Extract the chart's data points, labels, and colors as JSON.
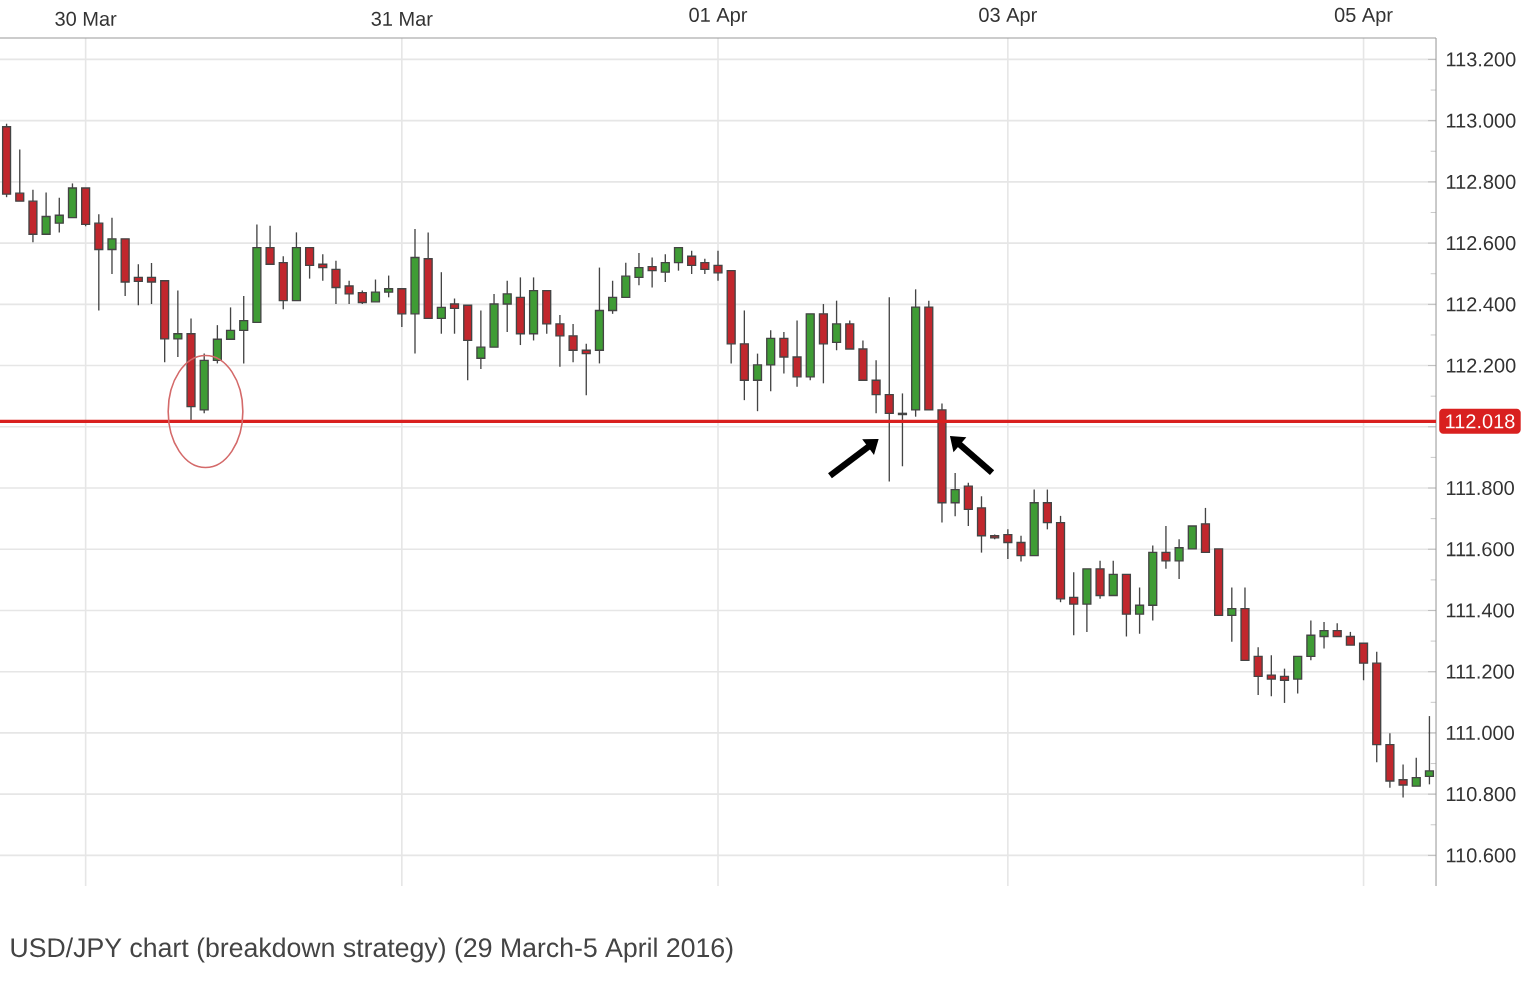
{
  "chart_data": {
    "type": "candlestick",
    "categories": [
      null,
      null,
      null,
      null,
      null,
      null,
      "30 Mar",
      null,
      null,
      null,
      null,
      null,
      null,
      null,
      null,
      null,
      null,
      null,
      null,
      null,
      null,
      null,
      null,
      null,
      null,
      null,
      null,
      null,
      null,
      null,
      "31 Mar",
      null,
      null,
      null,
      null,
      null,
      null,
      null,
      null,
      null,
      null,
      null,
      null,
      null,
      null,
      null,
      null,
      null,
      null,
      null,
      null,
      null,
      null,
      null,
      "01 Apr",
      null,
      null,
      null,
      null,
      null,
      null,
      null,
      null,
      null,
      null,
      null,
      null,
      null,
      null,
      null,
      null,
      null,
      null,
      null,
      null,
      null,
      "03 Apr",
      null,
      null,
      null,
      null,
      null,
      null,
      null,
      null,
      null,
      null,
      null,
      null,
      null,
      null,
      null,
      null,
      null,
      null,
      null,
      null,
      null,
      null,
      null,
      null,
      null,
      null,
      "05 Apr",
      null,
      null,
      null,
      null,
      null
    ],
    "ohlc": [
      [
        112.98,
        112.99,
        112.75,
        112.76
      ],
      [
        112.763,
        112.906,
        112.737,
        112.737
      ],
      [
        112.737,
        112.774,
        112.603,
        112.629
      ],
      [
        112.629,
        112.765,
        112.629,
        112.687
      ],
      [
        112.665,
        112.748,
        112.635,
        112.691
      ],
      [
        112.683,
        112.795,
        112.683,
        112.78
      ],
      [
        112.78,
        112.78,
        112.655,
        112.661
      ],
      [
        112.665,
        112.694,
        112.38,
        112.579
      ],
      [
        112.579,
        112.683,
        112.499,
        112.614
      ],
      [
        112.614,
        112.614,
        112.427,
        112.473
      ],
      [
        112.488,
        112.531,
        112.397,
        112.475
      ],
      [
        112.488,
        112.535,
        112.401,
        112.473
      ],
      [
        112.477,
        112.477,
        112.211,
        112.287
      ],
      [
        112.287,
        112.445,
        112.228,
        112.304
      ],
      [
        112.304,
        112.354,
        112.018,
        112.066
      ],
      [
        112.055,
        112.239,
        112.044,
        112.217
      ],
      [
        112.217,
        112.332,
        112.207,
        112.286
      ],
      [
        112.286,
        112.39,
        112.286,
        112.315
      ],
      [
        112.315,
        112.427,
        112.207,
        112.347
      ],
      [
        112.341,
        112.661,
        112.341,
        112.585
      ],
      [
        112.585,
        112.657,
        112.531,
        112.531
      ],
      [
        112.536,
        112.557,
        112.384,
        112.412
      ],
      [
        112.412,
        112.635,
        112.412,
        112.585
      ],
      [
        112.585,
        112.585,
        112.484,
        112.527
      ],
      [
        112.531,
        112.564,
        112.477,
        112.52
      ],
      [
        112.514,
        112.542,
        112.401,
        112.455
      ],
      [
        112.46,
        112.477,
        112.401,
        112.434
      ],
      [
        112.438,
        112.445,
        112.401,
        112.406
      ],
      [
        112.408,
        112.481,
        112.408,
        112.44
      ],
      [
        112.44,
        112.494,
        112.423,
        112.451
      ],
      [
        112.451,
        112.451,
        112.326,
        112.369
      ],
      [
        112.369,
        112.646,
        112.239,
        112.553
      ],
      [
        112.549,
        112.635,
        112.354,
        112.354
      ],
      [
        112.354,
        112.505,
        112.304,
        112.39
      ],
      [
        112.401,
        112.419,
        112.304,
        112.387
      ],
      [
        112.397,
        112.397,
        112.152,
        112.282
      ],
      [
        112.224,
        112.38,
        112.189,
        112.26
      ],
      [
        112.26,
        112.434,
        112.26,
        112.401
      ],
      [
        112.401,
        112.477,
        112.31,
        112.434
      ],
      [
        112.423,
        112.488,
        112.267,
        112.304
      ],
      [
        112.304,
        112.488,
        112.282,
        112.445
      ],
      [
        112.445,
        112.445,
        112.304,
        112.336
      ],
      [
        112.336,
        112.365,
        112.196,
        112.297
      ],
      [
        112.297,
        112.336,
        112.211,
        112.25
      ],
      [
        112.25,
        112.271,
        112.103,
        112.239
      ],
      [
        112.25,
        112.52,
        112.207,
        112.38
      ],
      [
        112.38,
        112.477,
        112.369,
        112.423
      ],
      [
        112.423,
        112.536,
        112.423,
        112.492
      ],
      [
        112.488,
        112.568,
        112.462,
        112.52
      ],
      [
        112.523,
        112.553,
        112.455,
        112.51
      ],
      [
        112.505,
        112.564,
        112.473,
        112.536
      ],
      [
        112.536,
        112.585,
        112.51,
        112.585
      ],
      [
        112.557,
        112.575,
        112.499,
        112.527
      ],
      [
        112.536,
        112.549,
        112.499,
        112.514
      ],
      [
        112.527,
        112.575,
        112.477,
        112.503
      ],
      [
        112.51,
        112.51,
        112.207,
        112.271
      ],
      [
        112.271,
        112.38,
        112.087,
        112.152
      ],
      [
        112.152,
        112.239,
        112.051,
        112.202
      ],
      [
        112.202,
        112.315,
        112.116,
        112.289
      ],
      [
        112.289,
        112.31,
        112.174,
        112.228
      ],
      [
        112.228,
        112.347,
        112.131,
        112.163
      ],
      [
        112.163,
        112.369,
        112.152,
        112.369
      ],
      [
        112.369,
        112.401,
        112.142,
        112.271
      ],
      [
        112.276,
        112.412,
        112.25,
        112.336
      ],
      [
        112.336,
        112.347,
        112.254,
        112.254
      ],
      [
        112.254,
        112.282,
        112.152,
        112.152
      ],
      [
        112.152,
        112.217,
        112.044,
        112.105
      ],
      [
        112.105,
        112.423,
        111.821,
        112.044
      ],
      [
        112.044,
        112.109,
        111.871,
        112.04
      ],
      [
        112.055,
        112.449,
        112.033,
        112.391
      ],
      [
        112.391,
        112.412,
        112.055,
        112.055
      ],
      [
        112.055,
        112.076,
        111.687,
        111.752
      ],
      [
        111.752,
        111.849,
        111.708,
        111.795
      ],
      [
        111.806,
        111.817,
        111.676,
        111.73
      ],
      [
        111.735,
        111.773,
        111.589,
        111.644
      ],
      [
        111.644,
        111.648,
        111.633,
        111.637
      ],
      [
        111.648,
        111.665,
        111.568,
        111.622
      ],
      [
        111.622,
        111.644,
        111.56,
        111.579
      ],
      [
        111.579,
        111.795,
        111.579,
        111.752
      ],
      [
        111.752,
        111.795,
        111.665,
        111.687
      ],
      [
        111.687,
        111.709,
        111.427,
        111.438
      ],
      [
        111.443,
        111.525,
        111.319,
        111.421
      ],
      [
        111.421,
        111.536,
        111.33,
        111.536
      ],
      [
        111.536,
        111.562,
        111.438,
        111.449
      ],
      [
        111.449,
        111.562,
        111.449,
        111.518
      ],
      [
        111.518,
        111.518,
        111.315,
        111.388
      ],
      [
        111.388,
        111.475,
        111.324,
        111.417
      ],
      [
        111.417,
        111.612,
        111.367,
        111.59
      ],
      [
        111.59,
        111.676,
        111.536,
        111.562
      ],
      [
        111.562,
        111.633,
        111.503,
        111.605
      ],
      [
        111.601,
        111.676,
        111.601,
        111.676
      ],
      [
        111.683,
        111.735,
        111.59,
        111.59
      ],
      [
        111.601,
        111.601,
        111.384,
        111.384
      ],
      [
        111.384,
        111.475,
        111.298,
        111.406
      ],
      [
        111.406,
        111.475,
        111.237,
        111.237
      ],
      [
        111.25,
        111.28,
        111.124,
        111.185
      ],
      [
        111.189,
        111.254,
        111.12,
        111.176
      ],
      [
        111.185,
        111.21,
        111.098,
        111.172
      ],
      [
        111.176,
        111.25,
        111.129,
        111.25
      ],
      [
        111.25,
        111.367,
        111.237,
        111.319
      ],
      [
        111.315,
        111.362,
        111.276,
        111.334
      ],
      [
        111.334,
        111.358,
        111.315,
        111.315
      ],
      [
        111.315,
        111.33,
        111.287,
        111.287
      ],
      [
        111.293,
        111.293,
        111.172,
        111.228
      ],
      [
        111.228,
        111.265,
        110.904,
        110.962
      ],
      [
        110.962,
        110.999,
        110.821,
        110.843
      ],
      [
        110.847,
        110.897,
        110.789,
        110.83
      ],
      [
        110.826,
        110.919,
        110.826,
        110.854
      ],
      [
        110.858,
        111.055,
        110.832,
        110.876
      ]
    ],
    "ylim": [
      110.5,
      113.27
    ],
    "yticks": [
      {
        "value": 110.6,
        "label": "110.600"
      },
      {
        "value": 110.8,
        "label": "110.800"
      },
      {
        "value": 111.0,
        "label": "111.000"
      },
      {
        "value": 111.2,
        "label": "111.200"
      },
      {
        "value": 111.4,
        "label": "111.400"
      },
      {
        "value": 111.6,
        "label": "111.600"
      },
      {
        "value": 111.8,
        "label": "111.800"
      },
      {
        "value": 112.0,
        "label": null
      },
      {
        "value": 112.2,
        "label": "112.200"
      },
      {
        "value": 112.4,
        "label": "112.400"
      },
      {
        "value": 112.6,
        "label": "112.600"
      },
      {
        "value": 112.8,
        "label": "112.800"
      },
      {
        "value": 113.0,
        "label": "113.000"
      },
      {
        "value": 113.2,
        "label": "113.200"
      }
    ],
    "grid": true,
    "ref_lines": [
      {
        "axis": "y",
        "value": 112.018,
        "label": "112.018",
        "color": "#d9201f"
      }
    ],
    "annotations": [
      "USD/JPY chart (breakdown strategy) (29 March-5 April 2016)"
    ]
  }
}
